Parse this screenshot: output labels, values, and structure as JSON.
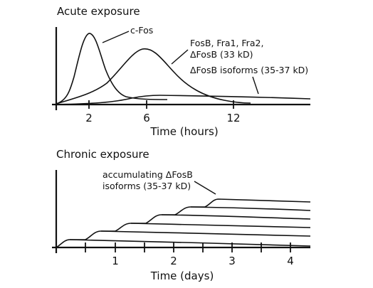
{
  "acute": {
    "title": "Acute exposure",
    "x_axis_label": "Time (hours)",
    "x_ticks": [
      "2",
      "6",
      "12"
    ],
    "labels": {
      "cfos": "c-Fos",
      "fosb_line1": "FosB, Fra1, Fra2,",
      "fosb_line2": "ΔFosB (33 kD)",
      "isoforms": "ΔFosB isoforms (35-37 kD)"
    }
  },
  "chronic": {
    "title": "Chronic exposure",
    "x_axis_label": "Time (days)",
    "x_ticks": [
      "1",
      "2",
      "3",
      "4"
    ],
    "labels": {
      "accum_line1": "accumulating ΔFosB",
      "accum_line2": "isoforms (35-37 kD)"
    }
  }
}
